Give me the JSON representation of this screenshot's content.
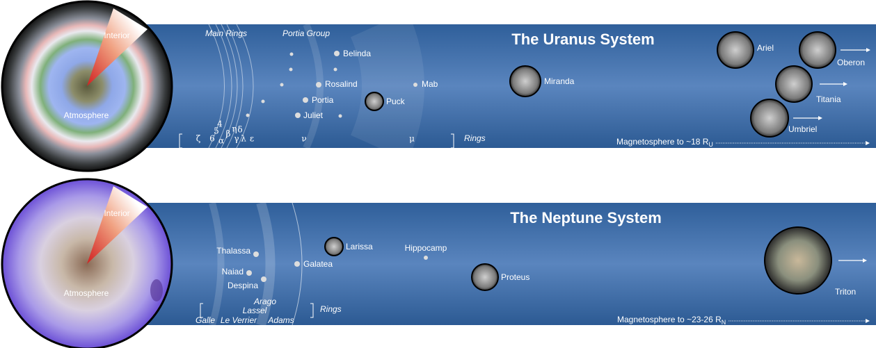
{
  "systems": [
    {
      "title": "The Uranus System",
      "interior": "Interior",
      "atmosphere": "Atmosphere",
      "group_labels": [
        "Main Rings",
        "Portia Group"
      ],
      "moons": [
        "Belinda",
        "Rosalind",
        "Portia",
        "Juliet",
        "Puck",
        "Mab",
        "Miranda",
        "Ariel",
        "Oberon",
        "Titania",
        "Umbriel"
      ],
      "ring_labels": [
        "ζ",
        "6",
        "5",
        "4",
        "α",
        "β",
        "η",
        "γ",
        "δ",
        "λ",
        "ε",
        "ν",
        "μ"
      ],
      "rings_label": "Rings",
      "magnetosphere": {
        "text": "Magnetosphere to ~18 R",
        "subscript": "U"
      }
    },
    {
      "title": "The Neptune System",
      "interior": "Interior",
      "atmosphere": "Atmosphere",
      "moons": [
        "Thalassa",
        "Naiad",
        "Despina",
        "Galatea",
        "Larissa",
        "Hippocamp",
        "Proteus",
        "Triton"
      ],
      "ring_labels": [
        "Galle",
        "Le Verrier",
        "Lassel",
        "Arago",
        "Adams"
      ],
      "rings_label": "Rings",
      "magnetosphere": {
        "text": "Magnetosphere to ~23-26 R",
        "subscript": "N"
      }
    }
  ]
}
